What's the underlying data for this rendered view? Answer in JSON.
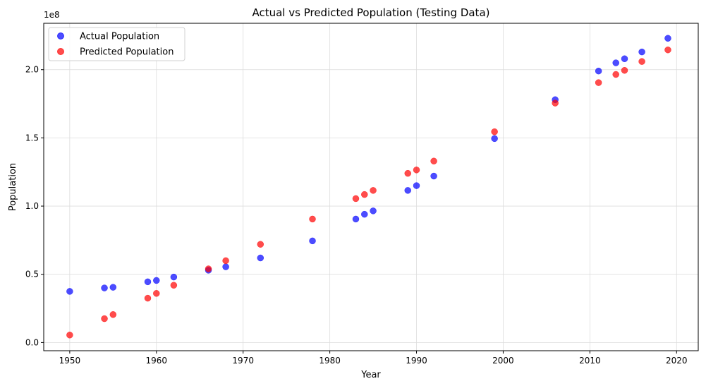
{
  "chart_data": {
    "type": "scatter",
    "title": "Actual vs Predicted Population (Testing Data)",
    "xlabel": "Year",
    "ylabel": "Population",
    "y_offset_label": "1e8",
    "xlim": [
      1947,
      2022.5
    ],
    "ylim": [
      -0.06,
      2.34
    ],
    "y_scale_factor": 100000000,
    "x_ticks": [
      1950,
      1960,
      1970,
      1980,
      1990,
      2000,
      2010,
      2020
    ],
    "y_ticks": [
      0.0,
      0.5,
      1.0,
      1.5,
      2.0
    ],
    "y_tick_labels": [
      "0.0",
      "0.5",
      "1.0",
      "1.5",
      "2.0"
    ],
    "grid": true,
    "legend_position": "top-left",
    "series": [
      {
        "name": "Actual Population",
        "color": "#0000ff",
        "x": [
          1950,
          1954,
          1955,
          1959,
          1960,
          1962,
          1966,
          1968,
          1972,
          1978,
          1983,
          1984,
          1985,
          1989,
          1990,
          1992,
          1999,
          2006,
          2011,
          2013,
          2014,
          2016,
          2019
        ],
        "y": [
          0.375,
          0.4,
          0.405,
          0.445,
          0.455,
          0.48,
          0.53,
          0.555,
          0.62,
          0.745,
          0.905,
          0.94,
          0.965,
          1.115,
          1.15,
          1.22,
          1.495,
          1.78,
          1.99,
          2.05,
          2.08,
          2.13,
          2.23
        ]
      },
      {
        "name": "Predicted Population",
        "color": "#ff0000",
        "x": [
          1950,
          1954,
          1955,
          1959,
          1960,
          1962,
          1966,
          1968,
          1972,
          1978,
          1983,
          1984,
          1985,
          1989,
          1990,
          1992,
          1999,
          2006,
          2011,
          2013,
          2014,
          2016,
          2019
        ],
        "y": [
          0.055,
          0.175,
          0.205,
          0.325,
          0.36,
          0.42,
          0.54,
          0.6,
          0.72,
          0.905,
          1.055,
          1.085,
          1.115,
          1.24,
          1.265,
          1.33,
          1.545,
          1.755,
          1.905,
          1.965,
          1.995,
          2.06,
          2.145
        ]
      }
    ]
  }
}
